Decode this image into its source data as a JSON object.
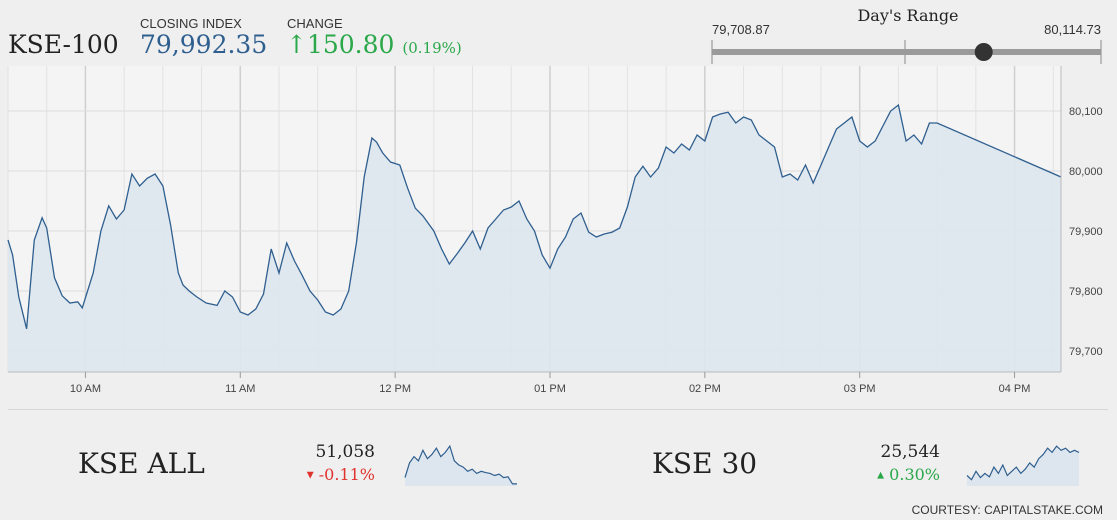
{
  "header": {
    "index_name": "KSE-100",
    "closing_label": "CLOSING INDEX",
    "closing_value": "79,992.35",
    "change_label": "CHANGE",
    "change_arrow": "↑",
    "change_value": "150.80",
    "change_pct": "(0.19%)",
    "up_color": "#2aa84a"
  },
  "day_range": {
    "title": "Day's Range",
    "low": "79,708.87",
    "high": "80,114.73",
    "low_value": 79708.87,
    "high_value": 80114.73,
    "current_value": 79992.35
  },
  "chart_data": {
    "type": "area",
    "x_tick_labels": [
      "10 AM",
      "11 AM",
      "12 PM",
      "01 PM",
      "02 PM",
      "03 PM",
      "04 PM"
    ],
    "y_tick_labels": [
      "80,100",
      "80,000",
      "79,900",
      "79,800",
      "79,700"
    ],
    "y_ticks": [
      80100,
      80000,
      79900,
      79800,
      79700
    ],
    "ylim": [
      79665,
      80175
    ],
    "xlim_hours": [
      9.5,
      16.3
    ],
    "grid": true,
    "line_color": "#2f5f8f",
    "fill_color": "#dde6ee",
    "series": [
      {
        "x": [
          9.5,
          9.53,
          9.57,
          9.62,
          9.67,
          9.72,
          9.75,
          9.8,
          9.85,
          9.9,
          9.95,
          9.98,
          10.05,
          10.1,
          10.15,
          10.2,
          10.25,
          10.3,
          10.35,
          10.4,
          10.45,
          10.5,
          10.55,
          10.6,
          10.63,
          10.67,
          10.72,
          10.78,
          10.85,
          10.9,
          10.95,
          11.0,
          11.05,
          11.1,
          11.15,
          11.2,
          11.25,
          11.3,
          11.35,
          11.4,
          11.45,
          11.5,
          11.55,
          11.6,
          11.65,
          11.7,
          11.75,
          11.8,
          11.85,
          11.88,
          11.92,
          11.97,
          12.03,
          12.08,
          12.13,
          12.18,
          12.25,
          12.3,
          12.35,
          12.4,
          12.45,
          12.5,
          12.55,
          12.6,
          12.65,
          12.7,
          12.75,
          12.8,
          12.85,
          12.9,
          12.95,
          13.0,
          13.05,
          13.1,
          13.15,
          13.2,
          13.25,
          13.3,
          13.35,
          13.4,
          13.45,
          13.5,
          13.55,
          13.6,
          13.65,
          13.7,
          13.75,
          13.8,
          13.85,
          13.9,
          13.95,
          14.0,
          14.05,
          14.1,
          14.15,
          14.2,
          14.25,
          14.3,
          14.35,
          14.4,
          14.45,
          14.5,
          14.55,
          14.6,
          14.65,
          14.7,
          14.75,
          14.8,
          14.85,
          14.9,
          14.95,
          15.0,
          15.05,
          15.1,
          15.15,
          15.2,
          15.25,
          15.3,
          15.35,
          15.4,
          15.45,
          15.5,
          16.3
        ],
        "y": [
          79885,
          79860,
          79790,
          79737,
          79885,
          79922,
          79905,
          79822,
          79792,
          79780,
          79782,
          79772,
          79830,
          79900,
          79942,
          79920,
          79935,
          79995,
          79975,
          79988,
          79995,
          79975,
          79910,
          79830,
          79810,
          79800,
          79790,
          79780,
          79776,
          79800,
          79790,
          79765,
          79760,
          79770,
          79795,
          79870,
          79830,
          79880,
          79850,
          79826,
          79800,
          79785,
          79765,
          79760,
          79770,
          79800,
          79880,
          79990,
          80055,
          80048,
          80030,
          80015,
          80010,
          79972,
          79938,
          79925,
          79900,
          79870,
          79845,
          79862,
          79880,
          79900,
          79870,
          79905,
          79920,
          79935,
          79940,
          79950,
          79920,
          79900,
          79860,
          79838,
          79870,
          79890,
          79920,
          79930,
          79898,
          79890,
          79895,
          79898,
          79905,
          79940,
          79990,
          80008,
          79990,
          80005,
          80040,
          80030,
          80045,
          80035,
          80060,
          80050,
          80090,
          80095,
          80098,
          80080,
          80090,
          80085,
          80060,
          80050,
          80040,
          79990,
          79995,
          79985,
          80010,
          79980,
          80010,
          80040,
          80070,
          80080,
          80090,
          80050,
          80040,
          80050,
          80075,
          80100,
          80110,
          80050,
          80060,
          80045,
          80080,
          80080,
          79990
        ]
      }
    ]
  },
  "tickers": [
    {
      "name": "KSE ALL",
      "value": "51,058",
      "arrow": "▼",
      "change": "-0.11%",
      "color": "#e0332e",
      "spark": [
        0.2,
        0.55,
        0.7,
        0.6,
        0.85,
        0.65,
        0.75,
        0.9,
        0.7,
        0.8,
        0.95,
        0.6,
        0.5,
        0.45,
        0.35,
        0.4,
        0.3,
        0.35,
        0.32,
        0.3,
        0.25,
        0.28,
        0.2,
        0.22,
        0.05,
        0.05
      ]
    },
    {
      "name": "KSE 30",
      "value": "25,544",
      "arrow": "▲",
      "change": "0.30%",
      "color": "#2aa84a",
      "spark": [
        0.25,
        0.15,
        0.35,
        0.2,
        0.3,
        0.22,
        0.45,
        0.3,
        0.5,
        0.25,
        0.35,
        0.45,
        0.3,
        0.4,
        0.55,
        0.45,
        0.65,
        0.75,
        0.9,
        0.8,
        0.95,
        0.85,
        0.9,
        0.8,
        0.85,
        0.8
      ]
    }
  ],
  "footer": {
    "courtesy": "COURTESY: CAPITALSTAKE.COM"
  }
}
